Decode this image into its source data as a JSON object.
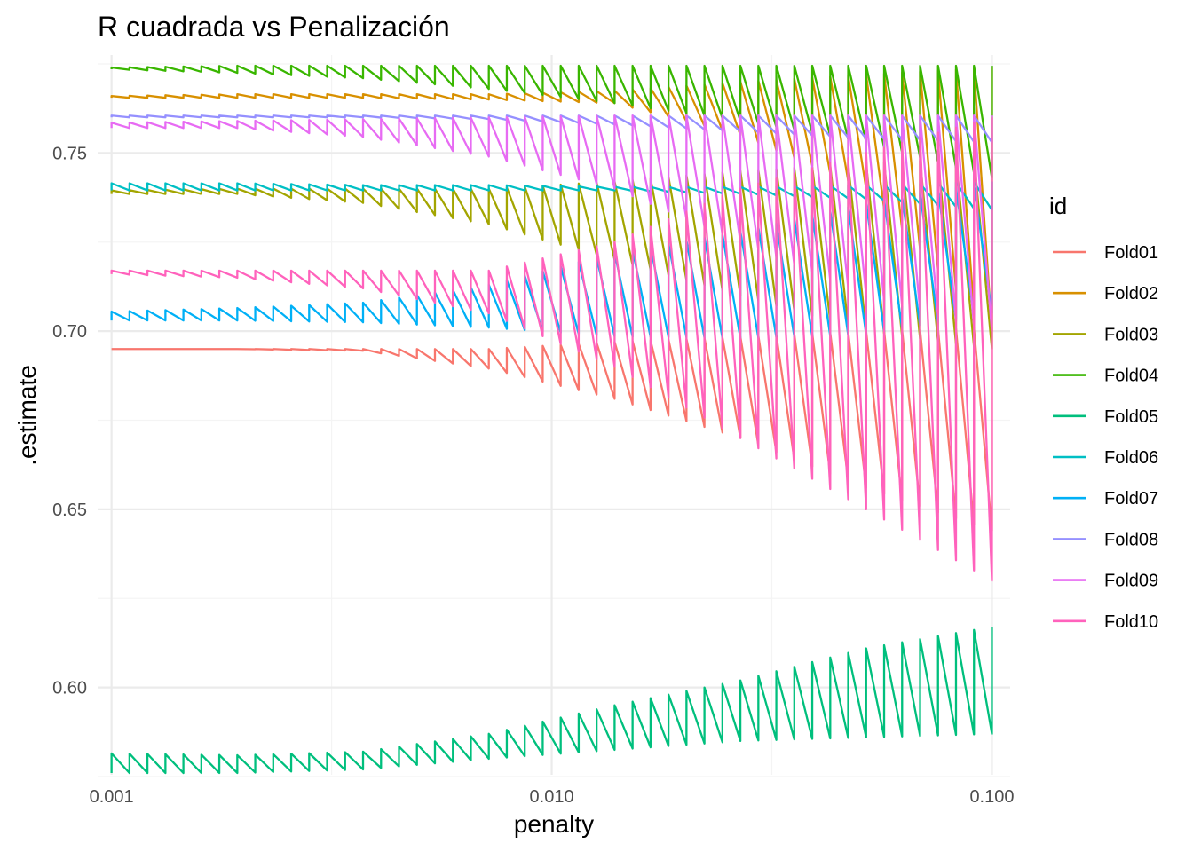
{
  "chart_data": {
    "type": "line",
    "title": "R cuadrada vs Penalización",
    "xlabel": "penalty",
    "ylabel": ".estimate",
    "x_scale": "log10",
    "xlim": [
      0.00093,
      0.11
    ],
    "ylim": [
      0.5755,
      0.7775
    ],
    "x_ticks": [
      0.001,
      0.01,
      0.1
    ],
    "x_tick_labels": [
      "0.001",
      "0.010",
      "0.100"
    ],
    "x_minor_ticks": [
      0.003162,
      0.031623
    ],
    "y_ticks": [
      0.6,
      0.65,
      0.7,
      0.75
    ],
    "y_tick_labels": [
      "0.60",
      "0.65",
      "0.70",
      "0.75"
    ],
    "y_minor_ticks": [
      0.575,
      0.625,
      0.675,
      0.725,
      0.775
    ],
    "grid": true,
    "legend": {
      "title": "id",
      "position": "right"
    },
    "penalty_range": [
      0.001,
      0.1
    ],
    "penalty_levels": 50,
    "series": [
      {
        "name": "Fold01",
        "color": "#F8766D",
        "low": [
          0.695,
          0.695,
          0.6945,
          0.6895,
          0.681,
          0.67,
          0.656,
          0.644
        ],
        "high": [
          0.695,
          0.695,
          0.695,
          0.695,
          0.697,
          0.6985,
          0.7,
          0.701
        ]
      },
      {
        "name": "Fold02",
        "color": "#D89000",
        "low": [
          0.7655,
          0.7655,
          0.7655,
          0.765,
          0.764,
          0.755,
          0.74,
          0.7
        ],
        "high": [
          0.766,
          0.7665,
          0.7665,
          0.7665,
          0.7675,
          0.77,
          0.772,
          0.774
        ]
      },
      {
        "name": "Fold03",
        "color": "#A3A500",
        "low": [
          0.7385,
          0.7385,
          0.736,
          0.73,
          0.72,
          0.71,
          0.7,
          0.695
        ],
        "high": [
          0.7395,
          0.74,
          0.74,
          0.74,
          0.742,
          0.745,
          0.747,
          0.749
        ]
      },
      {
        "name": "Fold04",
        "color": "#39B600",
        "low": [
          0.7735,
          0.7725,
          0.771,
          0.768,
          0.764,
          0.759,
          0.753,
          0.743
        ],
        "high": [
          0.774,
          0.7745,
          0.7745,
          0.7745,
          0.7745,
          0.7745,
          0.7745,
          0.7745
        ]
      },
      {
        "name": "Fold05",
        "color": "#00BF7D",
        "low": [
          0.576,
          0.576,
          0.577,
          0.58,
          0.5825,
          0.585,
          0.586,
          0.587
        ],
        "high": [
          0.5815,
          0.581,
          0.582,
          0.587,
          0.595,
          0.602,
          0.611,
          0.617
        ]
      },
      {
        "name": "Fold06",
        "color": "#00BFC4",
        "low": [
          0.7395,
          0.7395,
          0.7395,
          0.7395,
          0.7395,
          0.7385,
          0.737,
          0.734
        ],
        "high": [
          0.7415,
          0.7415,
          0.741,
          0.741,
          0.7405,
          0.7405,
          0.741,
          0.742
        ]
      },
      {
        "name": "Fold07",
        "color": "#00B0F6",
        "low": [
          0.703,
          0.703,
          0.7025,
          0.701,
          0.6985,
          0.698,
          0.699,
          0.705
        ],
        "high": [
          0.7055,
          0.7065,
          0.708,
          0.713,
          0.722,
          0.728,
          0.736,
          0.742
        ]
      },
      {
        "name": "Fold08",
        "color": "#9590FF",
        "low": [
          0.76,
          0.76,
          0.76,
          0.7595,
          0.758,
          0.756,
          0.754,
          0.753
        ],
        "high": [
          0.7605,
          0.7605,
          0.7605,
          0.7605,
          0.7605,
          0.7605,
          0.7605,
          0.7605
        ]
      },
      {
        "name": "Fold09",
        "color": "#E76BF3",
        "low": [
          0.757,
          0.757,
          0.7545,
          0.749,
          0.74,
          0.725,
          0.71,
          0.7
        ],
        "high": [
          0.7585,
          0.759,
          0.7595,
          0.76,
          0.7605,
          0.7605,
          0.7605,
          0.7605
        ]
      },
      {
        "name": "Fold10",
        "color": "#FF62BC",
        "low": [
          0.716,
          0.715,
          0.712,
          0.705,
          0.69,
          0.67,
          0.65,
          0.63
        ],
        "high": [
          0.717,
          0.717,
          0.717,
          0.717,
          0.725,
          0.74,
          0.75,
          0.76
        ]
      }
    ]
  }
}
